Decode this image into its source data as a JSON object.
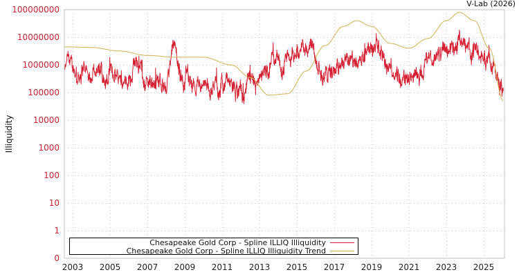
{
  "credit": "V-Lab (2026)",
  "chart_data": {
    "type": "line",
    "title": "",
    "xlabel": "",
    "ylabel": "Illiquidity",
    "yscale": "log",
    "ylim": [
      0,
      100000000
    ],
    "xlim": [
      2002.55,
      2026.1
    ],
    "y_ticks": [
      "100000000",
      "10000000",
      "1000000",
      "100000",
      "10000",
      "1000",
      "100",
      "10",
      "1",
      "0"
    ],
    "x_ticks": [
      "2003",
      "2005",
      "2007",
      "2009",
      "2011",
      "2013",
      "2015",
      "2017",
      "2019",
      "2021",
      "2023",
      "2025"
    ],
    "grid": true,
    "legend_position": "bottom-left inside plot",
    "legend": [
      "Chesapeake Gold Corp - Spline ILLIQ Illiquidity",
      "Chesapeake Gold Corp - Spline ILLIQ Illiquidity Trend"
    ],
    "colors": {
      "series": "#d42032",
      "trend": "#d4b050",
      "tick_labels_y": "#cc2233",
      "grid": "#c8c8c8",
      "frame": "#c0c0c0"
    },
    "series": [
      {
        "name": "Chesapeake Gold Corp - Spline ILLIQ Illiquidity",
        "x": [
          2002.55,
          2002.8,
          2003.0,
          2003.3,
          2003.6,
          2003.9,
          2004.2,
          2004.5,
          2004.8,
          2005.0,
          2005.3,
          2005.6,
          2006.0,
          2006.3,
          2006.6,
          2006.9,
          2007.1,
          2007.3,
          2007.6,
          2008.0,
          2008.4,
          2008.9,
          2009.1,
          2009.4,
          2009.8,
          2010.2,
          2010.6,
          2011.0,
          2011.4,
          2011.8,
          2012.1,
          2012.4,
          2012.7,
          2013.0,
          2013.4,
          2013.8,
          2014.2,
          2014.6,
          2015.0,
          2015.4,
          2015.8,
          2016.2,
          2016.6,
          2017.0,
          2017.4,
          2017.8,
          2018.2,
          2018.6,
          2019.0,
          2019.4,
          2019.8,
          2020.2,
          2020.6,
          2021.0,
          2021.5,
          2022.0,
          2022.5,
          2023.0,
          2023.5,
          2023.7,
          2024.0,
          2024.5,
          2025.0,
          2025.3,
          2025.6,
          2025.9,
          2026.05
        ],
        "values": [
          500000,
          1500000,
          700000,
          400000,
          800000,
          350000,
          900000,
          500000,
          250000,
          400000,
          500000,
          450000,
          350000,
          1000000,
          700000,
          250000,
          300000,
          250000,
          300000,
          150000,
          3000000,
          300000,
          600000,
          250000,
          200000,
          150000,
          180000,
          150000,
          200000,
          100000,
          70000,
          250000,
          120000,
          180000,
          500000,
          1500000,
          1000000,
          2000000,
          2500000,
          5000000,
          4000000,
          600000,
          500000,
          600000,
          1000000,
          1200000,
          2000000,
          2000000,
          3500000,
          4000000,
          1200000,
          700000,
          300000,
          350000,
          600000,
          1200000,
          1500000,
          4000000,
          5000000,
          9000000,
          5000000,
          3500000,
          1500000,
          2000000,
          700000,
          250000,
          80000
        ]
      },
      {
        "name": "Chesapeake Gold Corp - Spline ILLIQ Illiquidity Trend",
        "x": [
          2002.55,
          2004.0,
          2005.5,
          2007.0,
          2008.5,
          2010.0,
          2011.5,
          2012.5,
          2013.5,
          2014.5,
          2015.5,
          2016.5,
          2017.5,
          2018.2,
          2019.0,
          2020.0,
          2021.0,
          2022.0,
          2023.0,
          2023.7,
          2024.5,
          2025.3,
          2026.05
        ],
        "values": [
          4500000,
          4300000,
          3200000,
          2200000,
          1900000,
          1900000,
          1000000,
          350000,
          80000,
          90000,
          600000,
          5000000,
          25000000,
          40000000,
          25000000,
          6000000,
          4000000,
          9000000,
          40000000,
          80000000,
          40000000,
          4000000,
          50000
        ]
      }
    ]
  }
}
